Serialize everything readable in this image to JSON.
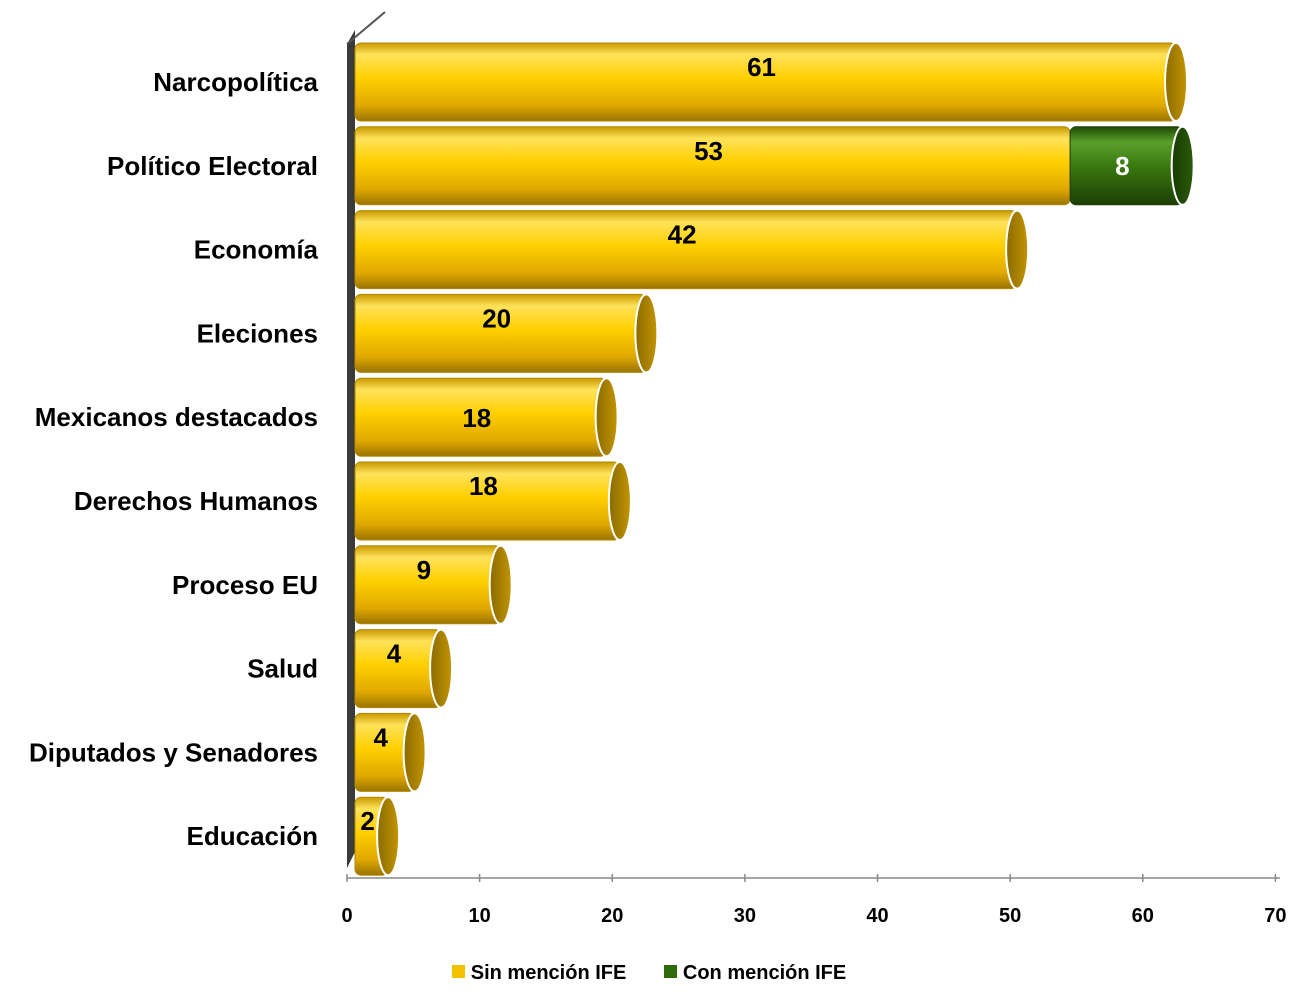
{
  "chart_data": {
    "type": "bar",
    "orientation": "horizontal",
    "stacked": true,
    "categories": [
      "Narcopolítica",
      "Político Electoral",
      "Economía",
      "Eleciones",
      "Mexicanos destacados",
      "Derechos Humanos",
      "Proceso EU",
      "Salud",
      "Diputados y Senadores",
      "Educación"
    ],
    "series": [
      {
        "name": "Sin mención IFE",
        "color": "#f2c200",
        "values": [
          61,
          53,
          42,
          20,
          18,
          18,
          9,
          4,
          4,
          2
        ],
        "bar_extents": [
          62,
          54,
          50,
          22,
          19,
          20,
          11,
          6.5,
          4.5,
          2.5
        ]
      },
      {
        "name": "Con mención IFE",
        "color": "#3a7a10",
        "values": [
          0,
          8,
          0,
          0,
          0,
          0,
          0,
          0,
          0,
          0
        ],
        "bar_extents": [
          0,
          8.5,
          0,
          0,
          0,
          0,
          0,
          0,
          0,
          0
        ]
      }
    ],
    "xlim": [
      0,
      70
    ],
    "xticks": [
      "0",
      "10",
      "20",
      "30",
      "40",
      "50",
      "60",
      "70"
    ],
    "legend_position": "bottom",
    "grid": false
  }
}
